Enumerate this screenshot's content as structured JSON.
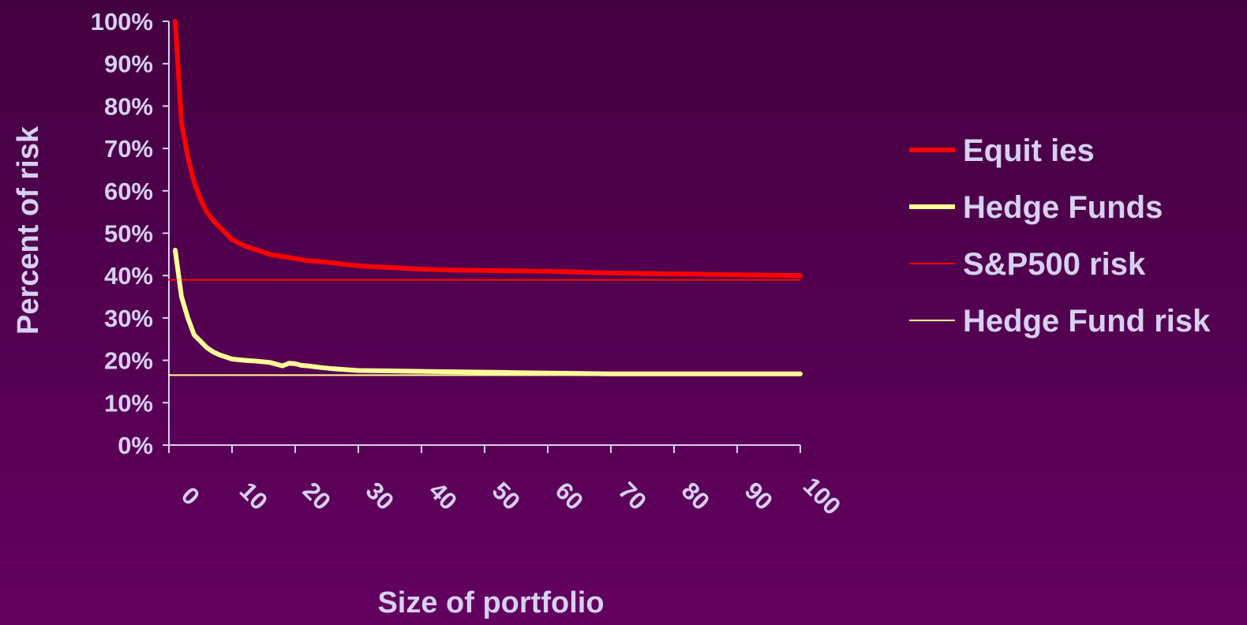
{
  "chart_data": {
    "type": "line",
    "xlabel": "Size of portfolio",
    "ylabel": "Percent of risk",
    "xlim": [
      0,
      100
    ],
    "ylim": [
      0,
      100
    ],
    "x_ticks": [
      "0",
      "10",
      "20",
      "30",
      "40",
      "50",
      "60",
      "70",
      "80",
      "90",
      "100"
    ],
    "y_ticks": [
      "0%",
      "10%",
      "20%",
      "30%",
      "40%",
      "50%",
      "60%",
      "70%",
      "80%",
      "90%",
      "100%"
    ],
    "grid": false,
    "legend_position": "right",
    "series": [
      {
        "name": "Equit ies",
        "color": "#ff0000",
        "style": "thick",
        "x": [
          1,
          2,
          3,
          4,
          5,
          6,
          7,
          8,
          9,
          10,
          12,
          14,
          16,
          18,
          20,
          22,
          24,
          26,
          28,
          30,
          35,
          40,
          45,
          50,
          55,
          60,
          65,
          70,
          75,
          80,
          85,
          90,
          95,
          100
        ],
        "y": [
          100,
          76,
          68,
          62,
          58,
          55,
          53,
          51.5,
          50,
          48.5,
          47,
          46,
          45,
          44.5,
          44,
          43.5,
          43.3,
          43,
          42.6,
          42.3,
          41.9,
          41.5,
          41.3,
          41.2,
          41.1,
          41,
          40.8,
          40.6,
          40.5,
          40.4,
          40.3,
          40.2,
          40.1,
          40
        ]
      },
      {
        "name": "Hedge Funds",
        "color": "#ffff99",
        "style": "thick",
        "x": [
          1,
          2,
          3,
          4,
          5,
          6,
          7,
          8,
          9,
          10,
          12,
          14,
          16,
          18,
          19,
          20,
          21,
          22,
          24,
          26,
          28,
          30,
          35,
          40,
          45,
          50,
          55,
          60,
          65,
          70,
          75,
          80,
          85,
          90,
          95,
          100
        ],
        "y": [
          46,
          35,
          30,
          26,
          24.5,
          23,
          22,
          21.3,
          20.8,
          20.3,
          20,
          19.8,
          19.5,
          18.7,
          19.3,
          19.2,
          18.8,
          18.7,
          18.3,
          18,
          17.8,
          17.6,
          17.5,
          17.4,
          17.3,
          17.2,
          17.1,
          17,
          16.9,
          16.8,
          16.8,
          16.8,
          16.8,
          16.8,
          16.8,
          16.8
        ]
      },
      {
        "name": "S&P500 risk",
        "color": "#ff0000",
        "style": "thin",
        "x": [
          0,
          100
        ],
        "y": [
          39,
          39
        ]
      },
      {
        "name": "Hedge Fund risk",
        "color": "#ffff99",
        "style": "thin",
        "x": [
          0,
          100
        ],
        "y": [
          16.5,
          16.5
        ]
      }
    ]
  }
}
